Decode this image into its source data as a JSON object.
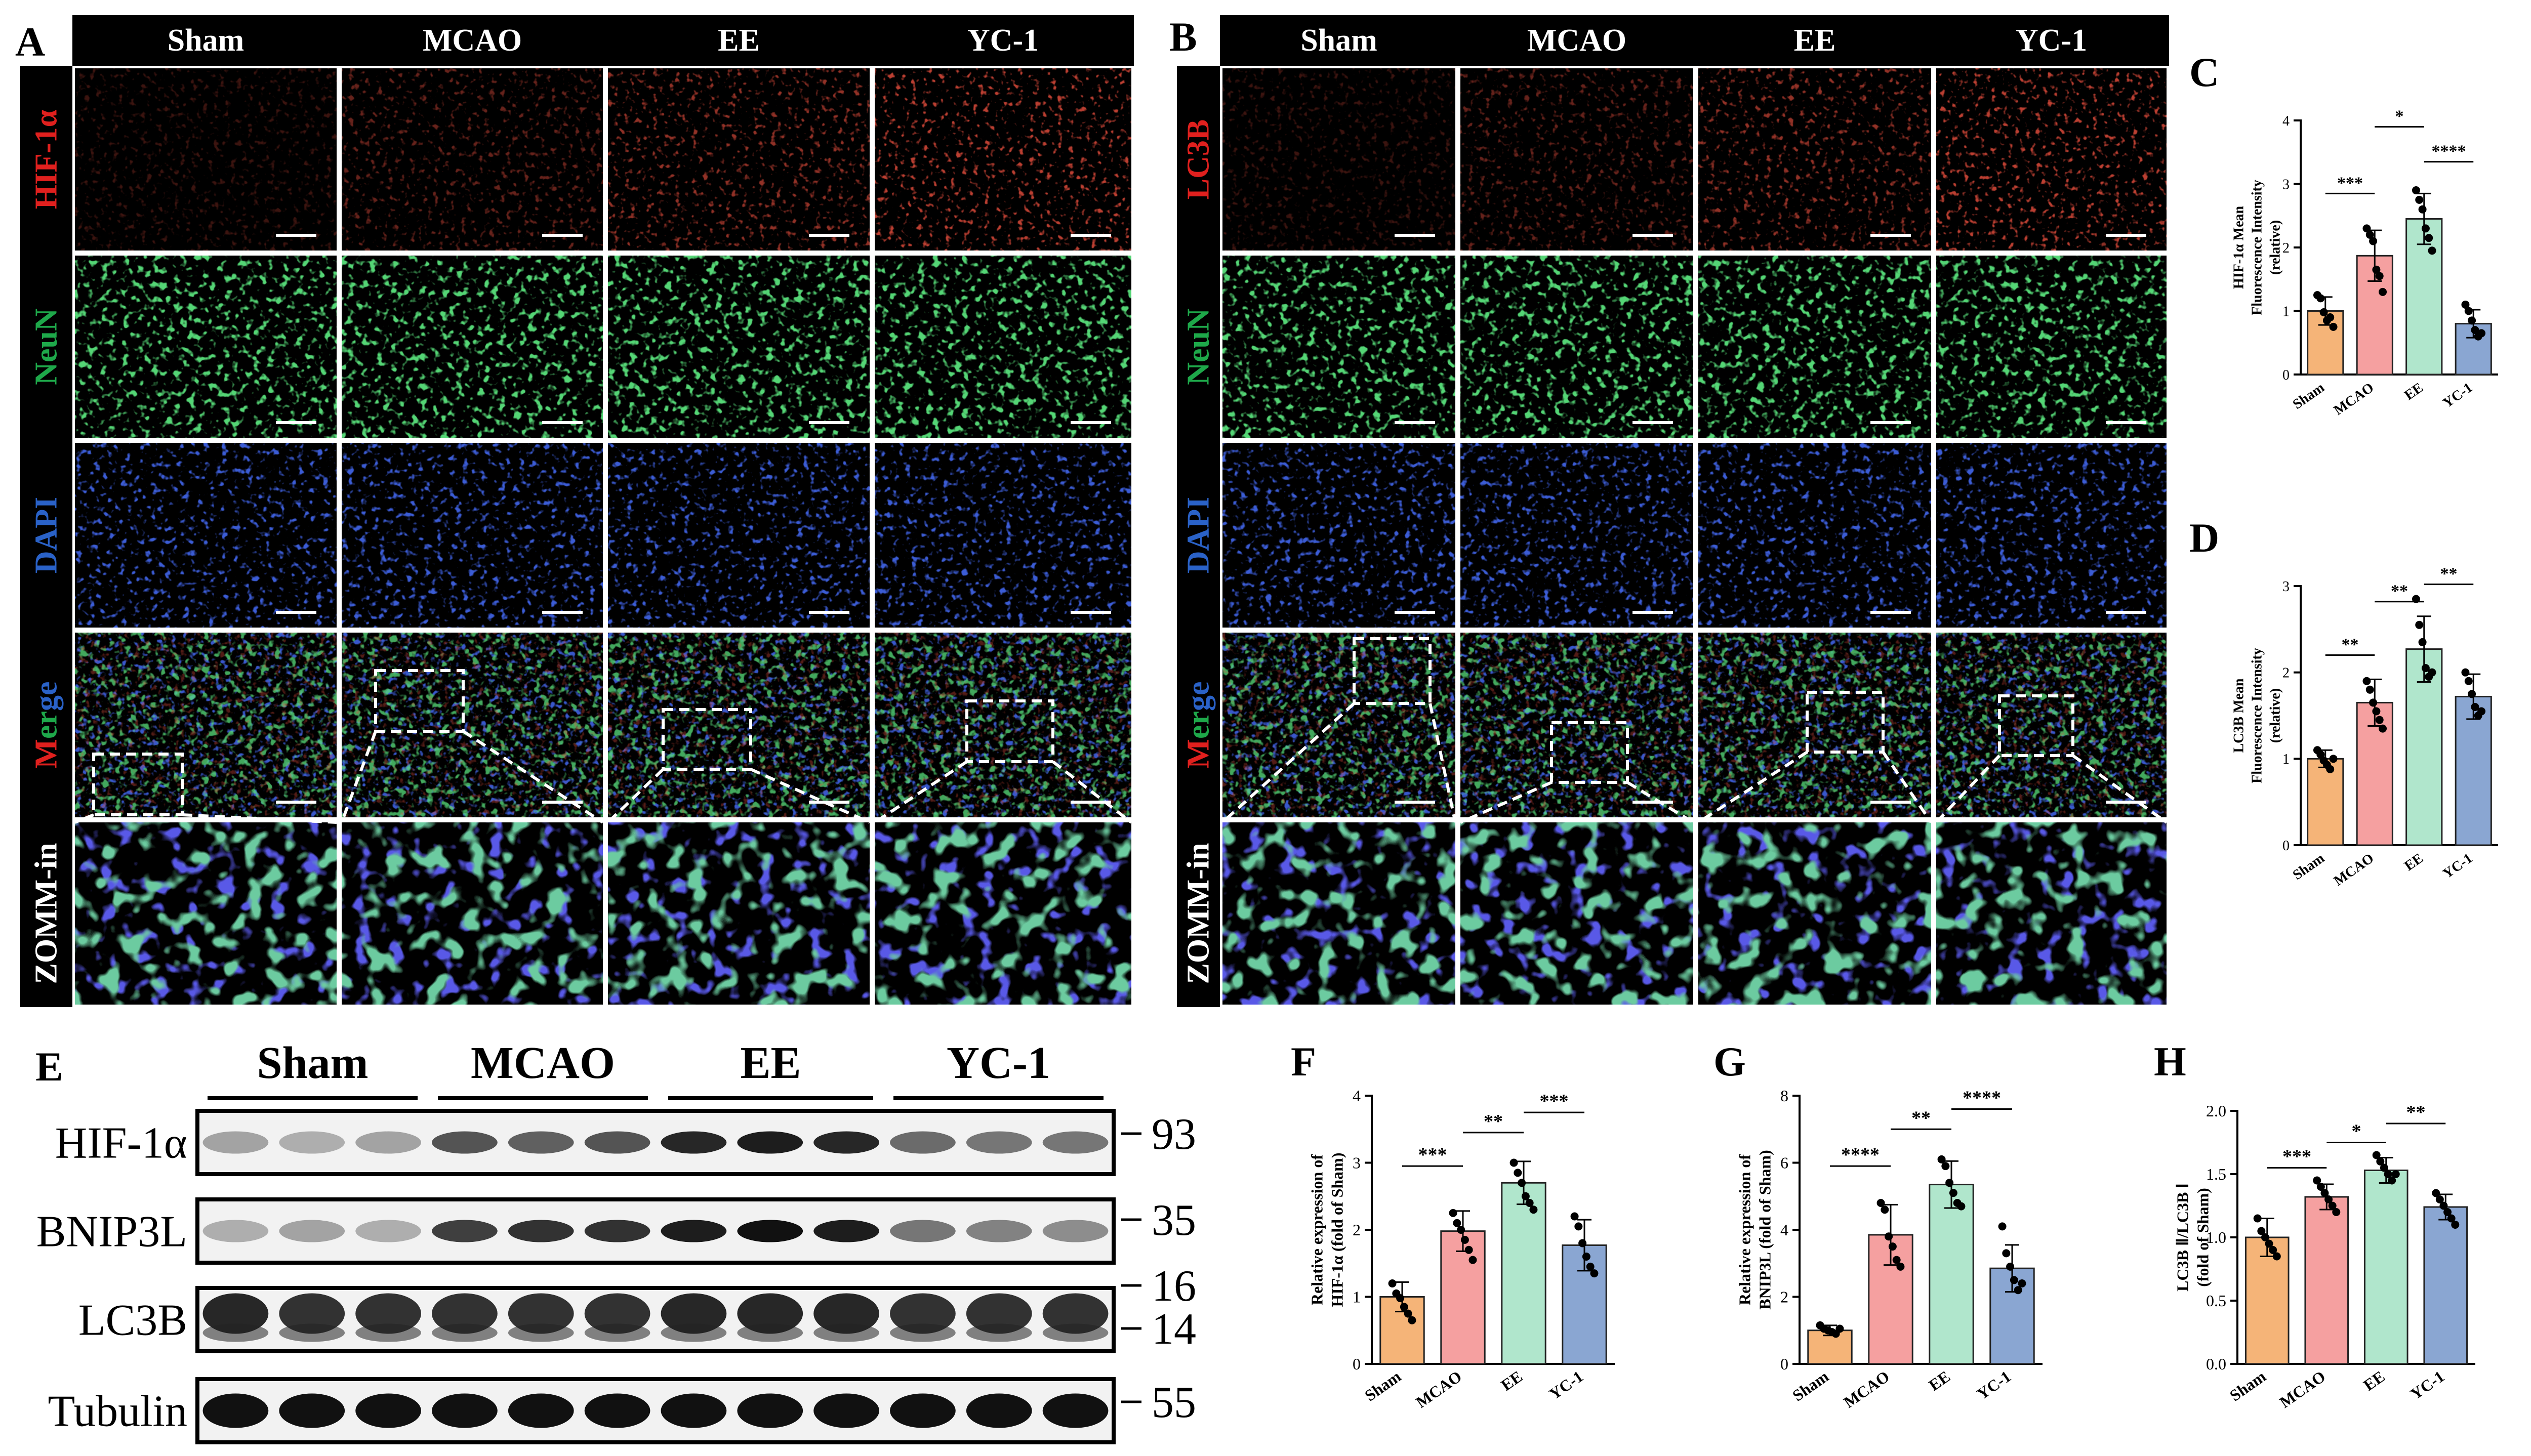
{
  "panels": {
    "A": "A",
    "B": "B",
    "C": "C",
    "D": "D",
    "E": "E",
    "F": "F",
    "G": "G",
    "H": "H"
  },
  "groups": [
    "Sham",
    "MCAO",
    "EE",
    "YC-1"
  ],
  "microscopy": {
    "A": {
      "rows": [
        {
          "label": "HIF-1α",
          "parts": [
            {
              "t": "HIF-1α",
              "c": "#e0201e"
            }
          ],
          "channel": "red"
        },
        {
          "label": "NeuN",
          "parts": [
            {
              "t": "NeuN",
              "c": "#1ea84a"
            }
          ],
          "channel": "green"
        },
        {
          "label": "DAPI",
          "parts": [
            {
              "t": "DAPI",
              "c": "#2a62c8"
            }
          ],
          "channel": "blue"
        },
        {
          "label": "Merge",
          "parts": [
            {
              "t": "M",
              "c": "#e0201e"
            },
            {
              "t": "er",
              "c": "#1ea84a"
            },
            {
              "t": "ge",
              "c": "#2a62c8"
            }
          ],
          "channel": "merge"
        },
        {
          "label": "ZOMM-in",
          "parts": [
            {
              "t": "ZOMM-in",
              "c": "#ffffff"
            }
          ],
          "channel": "zoom"
        }
      ]
    },
    "B": {
      "rows": [
        {
          "label": "LC3B",
          "parts": [
            {
              "t": "LC3B",
              "c": "#e0201e"
            }
          ],
          "channel": "red"
        },
        {
          "label": "NeuN",
          "parts": [
            {
              "t": "NeuN",
              "c": "#1ea84a"
            }
          ],
          "channel": "green"
        },
        {
          "label": "DAPI",
          "parts": [
            {
              "t": "DAPI",
              "c": "#2a62c8"
            }
          ],
          "channel": "blue"
        },
        {
          "label": "Merge",
          "parts": [
            {
              "t": "M",
              "c": "#e0201e"
            },
            {
              "t": "er",
              "c": "#1ea84a"
            },
            {
              "t": "ge",
              "c": "#2a62c8"
            }
          ],
          "channel": "merge"
        },
        {
          "label": "ZOMM-in",
          "parts": [
            {
              "t": "ZOMM-in",
              "c": "#ffffff"
            }
          ],
          "channel": "zoom"
        }
      ]
    }
  },
  "blot": {
    "groups": [
      "Sham",
      "MCAO",
      "EE",
      "YC-1"
    ],
    "proteins": [
      "HIF-1α",
      "BNIP3L",
      "LC3B",
      "Tubulin"
    ],
    "markers": [
      "93",
      "35",
      "16",
      "14",
      "55"
    ],
    "lanes_per_group": 3
  },
  "colors": {
    "Sham": "#f5b478",
    "MCAO": "#f5a0a0",
    "EE": "#b0e6cc",
    "YC-1": "#8aa6d2"
  },
  "chart_data": [
    {
      "id": "C",
      "type": "bar",
      "categories": [
        "Sham",
        "MCAO",
        "EE",
        "YC-1"
      ],
      "values": [
        1.0,
        1.87,
        2.45,
        0.8
      ],
      "errors": [
        0.22,
        0.4,
        0.4,
        0.22
      ],
      "ylabel": [
        "HIF-1α Mean",
        "Fluorescence Intensity",
        "(relative)"
      ],
      "ylim": [
        0,
        4
      ],
      "yticks": [
        "0",
        "1",
        "2",
        "3",
        "4"
      ],
      "points": [
        [
          1.25,
          1.2,
          0.98,
          0.85,
          0.9,
          0.75
        ],
        [
          2.3,
          2.2,
          2.1,
          1.65,
          1.55,
          1.3
        ],
        [
          2.9,
          2.75,
          2.6,
          2.3,
          2.15,
          1.95
        ],
        [
          1.1,
          1.0,
          0.85,
          0.7,
          0.6,
          0.65
        ]
      ],
      "sig": [
        {
          "a": 0,
          "b": 1,
          "label": "***",
          "y": 2.85
        },
        {
          "a": 1,
          "b": 2,
          "label": "*",
          "y": 3.9
        },
        {
          "a": 2,
          "b": 3,
          "label": "****",
          "y": 3.35
        }
      ]
    },
    {
      "id": "D",
      "type": "bar",
      "categories": [
        "Sham",
        "MCAO",
        "EE",
        "YC-1"
      ],
      "values": [
        1.0,
        1.65,
        2.27,
        1.72
      ],
      "errors": [
        0.1,
        0.27,
        0.38,
        0.26
      ],
      "ylabel": [
        "LC3B Mean",
        "Fluorescence Intensity",
        "(relative)"
      ],
      "ylim": [
        0,
        3
      ],
      "yticks": [
        "0",
        "1",
        "2",
        "3"
      ],
      "points": [
        [
          1.1,
          1.05,
          0.98,
          0.93,
          0.88,
          1.0
        ],
        [
          1.9,
          1.8,
          1.65,
          1.55,
          1.45,
          1.35
        ],
        [
          2.85,
          2.55,
          2.35,
          2.05,
          1.95,
          2.0
        ],
        [
          2.0,
          1.9,
          1.75,
          1.6,
          1.5,
          1.55
        ]
      ],
      "sig": [
        {
          "a": 0,
          "b": 1,
          "label": "**",
          "y": 2.2
        },
        {
          "a": 1,
          "b": 2,
          "label": "**",
          "y": 2.82
        },
        {
          "a": 2,
          "b": 3,
          "label": "**",
          "y": 3.02
        }
      ]
    },
    {
      "id": "F",
      "type": "bar",
      "categories": [
        "Sham",
        "MCAO",
        "EE",
        "YC-1"
      ],
      "values": [
        1.0,
        1.98,
        2.7,
        1.77
      ],
      "errors": [
        0.22,
        0.3,
        0.32,
        0.38
      ],
      "ylabel": [
        "Relative expression of",
        "HIF-1α (fold of Sham)"
      ],
      "ylim": [
        0,
        4
      ],
      "yticks": [
        "0",
        "1",
        "2",
        "3",
        "4"
      ],
      "points": [
        [
          1.2,
          1.05,
          0.98,
          0.85,
          0.75,
          0.65
        ],
        [
          2.25,
          2.1,
          2.0,
          1.85,
          1.7,
          1.55
        ],
        [
          3.0,
          2.85,
          2.7,
          2.5,
          2.4,
          2.3
        ],
        [
          2.2,
          2.05,
          1.8,
          1.6,
          1.45,
          1.35
        ]
      ],
      "sig": [
        {
          "a": 0,
          "b": 1,
          "label": "***",
          "y": 2.95
        },
        {
          "a": 1,
          "b": 2,
          "label": "**",
          "y": 3.45
        },
        {
          "a": 2,
          "b": 3,
          "label": "***",
          "y": 3.75
        }
      ]
    },
    {
      "id": "G",
      "type": "bar",
      "categories": [
        "Sham",
        "MCAO",
        "EE",
        "YC-1"
      ],
      "values": [
        1.0,
        3.85,
        5.35,
        2.85
      ],
      "errors": [
        0.15,
        0.9,
        0.7,
        0.7
      ],
      "ylabel": [
        "Relative expression of",
        "BNIP3L (fold of Sham)"
      ],
      "ylim": [
        0,
        8
      ],
      "yticks": [
        "0",
        "2",
        "4",
        "6",
        "8"
      ],
      "points": [
        [
          1.15,
          1.05,
          1.0,
          0.95,
          0.9,
          1.05
        ],
        [
          4.8,
          4.6,
          3.8,
          3.5,
          3.1,
          2.9
        ],
        [
          6.1,
          5.9,
          5.4,
          5.1,
          4.8,
          4.7
        ],
        [
          4.1,
          3.3,
          2.9,
          2.5,
          2.2,
          2.4
        ]
      ],
      "sig": [
        {
          "a": 0,
          "b": 1,
          "label": "****",
          "y": 5.9
        },
        {
          "a": 1,
          "b": 2,
          "label": "**",
          "y": 7.0
        },
        {
          "a": 2,
          "b": 3,
          "label": "****",
          "y": 7.6
        }
      ]
    },
    {
      "id": "H",
      "type": "bar",
      "categories": [
        "Sham",
        "MCAO",
        "EE",
        "YC-1"
      ],
      "values": [
        1.0,
        1.32,
        1.53,
        1.24
      ],
      "errors": [
        0.15,
        0.1,
        0.1,
        0.1
      ],
      "ylabel": [
        "LC3B Ⅱ/LC3B Ⅰ",
        "(fold of Sham)"
      ],
      "ylim": [
        0,
        2.0
      ],
      "yticks": [
        "0.0",
        "0.5",
        "1.0",
        "1.5",
        "2.0"
      ],
      "points": [
        [
          1.15,
          1.05,
          1.0,
          0.95,
          0.9,
          0.85
        ],
        [
          1.45,
          1.4,
          1.35,
          1.3,
          1.25,
          1.2
        ],
        [
          1.65,
          1.6,
          1.55,
          1.5,
          1.45,
          1.5
        ],
        [
          1.35,
          1.3,
          1.25,
          1.2,
          1.15,
          1.1
        ]
      ],
      "sig": [
        {
          "a": 0,
          "b": 1,
          "label": "***",
          "y": 1.55
        },
        {
          "a": 1,
          "b": 2,
          "label": "*",
          "y": 1.75
        },
        {
          "a": 2,
          "b": 3,
          "label": "**",
          "y": 1.9
        }
      ]
    }
  ]
}
